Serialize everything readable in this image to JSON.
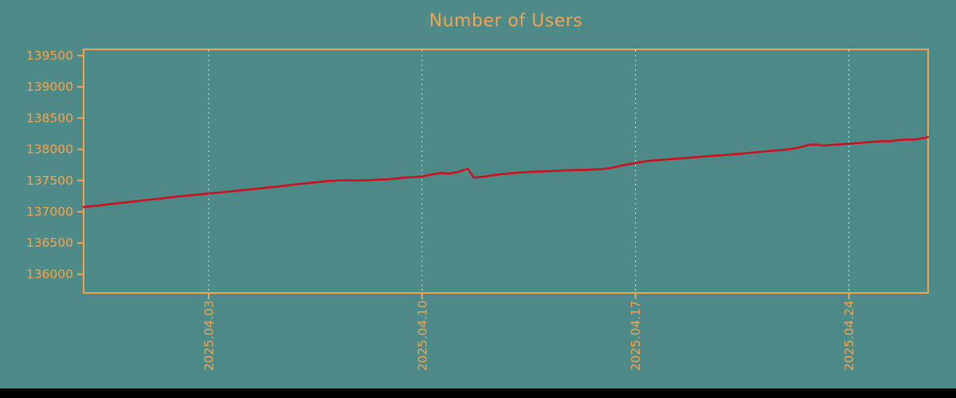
{
  "chart_data": {
    "type": "line",
    "title": "Number of Users",
    "xlabel": "",
    "ylabel": "",
    "background_color": "#4e8a87",
    "axis_color": "#f2a254",
    "line_color": "#cf1222",
    "grid_color": "#eeeeee",
    "legend_position": "none",
    "grid": "vertical-dotted",
    "ylim": [
      135700,
      139600
    ],
    "xlim_days": [
      0,
      27.7
    ],
    "y_ticks": [
      {
        "value": 139500,
        "label": "139500"
      },
      {
        "value": 139000,
        "label": "139000"
      },
      {
        "value": 138500,
        "label": "138500"
      },
      {
        "value": 138000,
        "label": "138000"
      },
      {
        "value": 137500,
        "label": "137500"
      },
      {
        "value": 137000,
        "label": "137000"
      },
      {
        "value": 136500,
        "label": "136500"
      },
      {
        "value": 136000,
        "label": "136000"
      }
    ],
    "x_ticks": [
      {
        "day": 4.1,
        "label": "2025.04.03"
      },
      {
        "day": 11.1,
        "label": "2025.04.10"
      },
      {
        "day": 18.1,
        "label": "2025.04.17"
      },
      {
        "day": 25.1,
        "label": "2025.04.24"
      }
    ],
    "series": [
      {
        "name": "Number of Users",
        "points": [
          [
            0,
            137075
          ],
          [
            0.5,
            137100
          ],
          [
            1,
            137130
          ],
          [
            1.5,
            137155
          ],
          [
            2,
            137185
          ],
          [
            2.5,
            137210
          ],
          [
            3,
            137240
          ],
          [
            3.5,
            137262
          ],
          [
            4.1,
            137292
          ],
          [
            4.6,
            137312
          ],
          [
            5,
            137335
          ],
          [
            5.5,
            137360
          ],
          [
            6,
            137385
          ],
          [
            6.5,
            137410
          ],
          [
            7,
            137440
          ],
          [
            7.5,
            137465
          ],
          [
            8,
            137490
          ],
          [
            8.5,
            137505
          ],
          [
            9,
            137500
          ],
          [
            9.5,
            137510
          ],
          [
            10,
            137520
          ],
          [
            10.5,
            137545
          ],
          [
            11.1,
            137565
          ],
          [
            11.4,
            137595
          ],
          [
            11.7,
            137620
          ],
          [
            12,
            137612
          ],
          [
            12.3,
            137640
          ],
          [
            12.6,
            137690
          ],
          [
            12.8,
            137545
          ],
          [
            13.1,
            137560
          ],
          [
            13.5,
            137590
          ],
          [
            14,
            137615
          ],
          [
            14.5,
            137635
          ],
          [
            15,
            137645
          ],
          [
            15.5,
            137655
          ],
          [
            16,
            137665
          ],
          [
            16.5,
            137672
          ],
          [
            17,
            137682
          ],
          [
            17.3,
            137700
          ],
          [
            17.6,
            137735
          ],
          [
            18.1,
            137782
          ],
          [
            18.5,
            137812
          ],
          [
            18.9,
            137830
          ],
          [
            19.3,
            137845
          ],
          [
            19.7,
            137857
          ],
          [
            20,
            137870
          ],
          [
            20.5,
            137890
          ],
          [
            21,
            137907
          ],
          [
            21.5,
            137927
          ],
          [
            22,
            137950
          ],
          [
            22.5,
            137972
          ],
          [
            23,
            137992
          ],
          [
            23.3,
            138012
          ],
          [
            23.6,
            138045
          ],
          [
            23.8,
            138072
          ],
          [
            24,
            138077
          ],
          [
            24.3,
            138060
          ],
          [
            24.6,
            138072
          ],
          [
            25.1,
            138088
          ],
          [
            25.5,
            138102
          ],
          [
            25.8,
            138117
          ],
          [
            26.2,
            138132
          ],
          [
            26.4,
            138126
          ],
          [
            26.7,
            138147
          ],
          [
            27,
            138157
          ],
          [
            27.2,
            138152
          ],
          [
            27.4,
            138168
          ],
          [
            27.6,
            138182
          ],
          [
            27.7,
            138198
          ]
        ]
      }
    ]
  }
}
